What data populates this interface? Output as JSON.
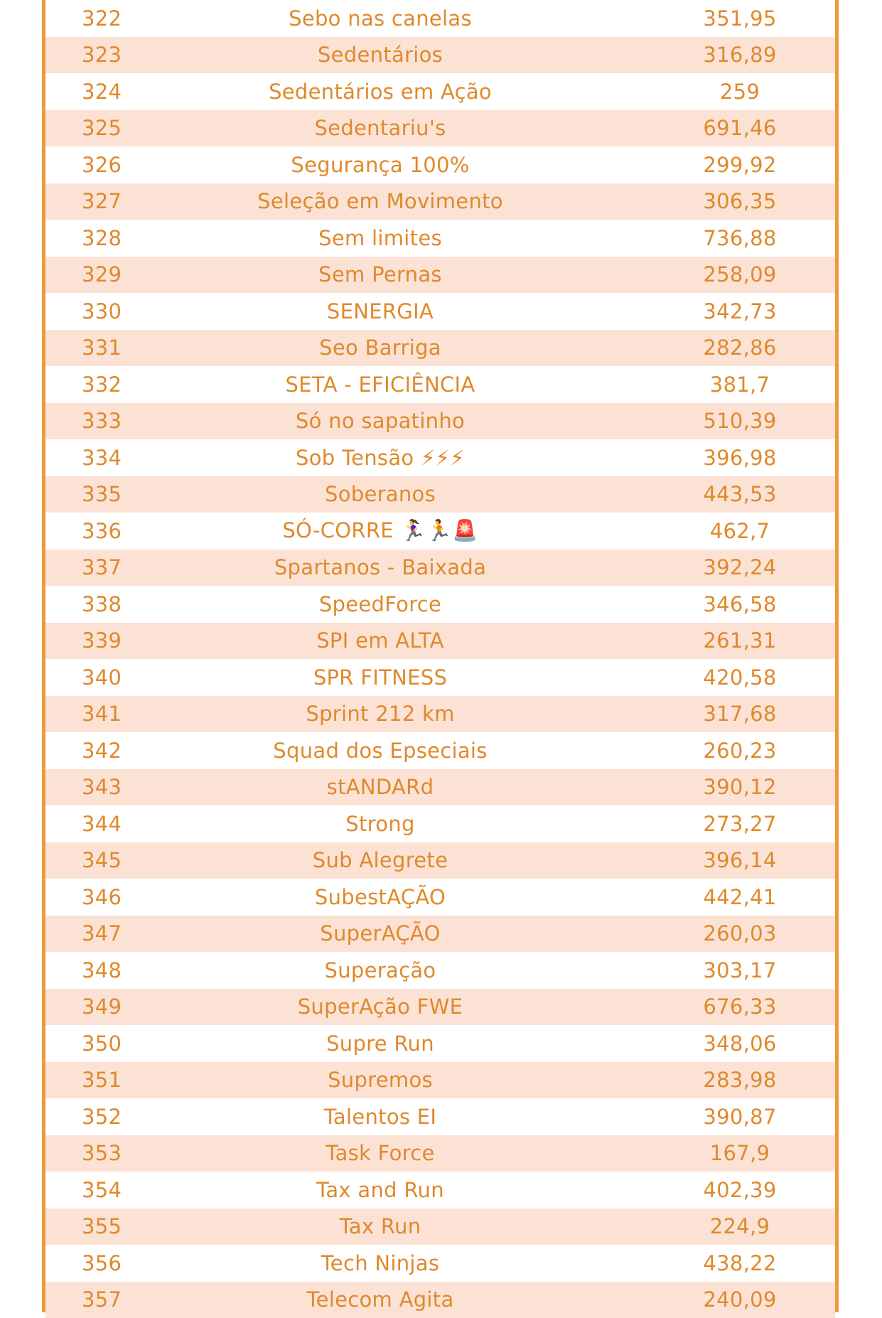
{
  "rows": [
    {
      "num": "322",
      "name": "Sebo nas canelas",
      "value": "351,95"
    },
    {
      "num": "323",
      "name": "Sedentários",
      "value": "316,89"
    },
    {
      "num": "324",
      "name": "Sedentários em Ação",
      "value": "259"
    },
    {
      "num": "325",
      "name": "Sedentariu's",
      "value": "691,46"
    },
    {
      "num": "326",
      "name": "Segurança 100%",
      "value": "299,92"
    },
    {
      "num": "327",
      "name": "Seleção em Movimento",
      "value": "306,35"
    },
    {
      "num": "328",
      "name": "Sem limites",
      "value": "736,88"
    },
    {
      "num": "329",
      "name": "Sem Pernas",
      "value": "258,09"
    },
    {
      "num": "330",
      "name": "SENERGIA",
      "value": "342,73"
    },
    {
      "num": "331",
      "name": "Seo Barriga",
      "value": "282,86"
    },
    {
      "num": "332",
      "name": "SETA - EFICIÊNCIA",
      "value": "381,7"
    },
    {
      "num": "333",
      "name": "Só no sapatinho",
      "value": "510,39"
    },
    {
      "num": "334",
      "name": "Sob Tensão ⚡⚡⚡",
      "value": "396,98"
    },
    {
      "num": "335",
      "name": "Soberanos",
      "value": "443,53"
    },
    {
      "num": "336",
      "name": "SÓ-CORRE 🏃‍♀️🏃🚨",
      "value": "462,7"
    },
    {
      "num": "337",
      "name": "Spartanos - Baixada",
      "value": "392,24"
    },
    {
      "num": "338",
      "name": "SpeedForce",
      "value": "346,58"
    },
    {
      "num": "339",
      "name": "SPI em ALTA",
      "value": "261,31"
    },
    {
      "num": "340",
      "name": "SPR FITNESS",
      "value": "420,58"
    },
    {
      "num": "341",
      "name": "Sprint 212 km",
      "value": "317,68"
    },
    {
      "num": "342",
      "name": "Squad dos Epseciais",
      "value": "260,23"
    },
    {
      "num": "343",
      "name": "stANDARd",
      "value": "390,12"
    },
    {
      "num": "344",
      "name": "Strong",
      "value": "273,27"
    },
    {
      "num": "345",
      "name": "Sub Alegrete",
      "value": "396,14"
    },
    {
      "num": "346",
      "name": "SubestAÇÃO",
      "value": "442,41"
    },
    {
      "num": "347",
      "name": "SuperAÇÃO",
      "value": "260,03"
    },
    {
      "num": "348",
      "name": "Superação",
      "value": "303,17"
    },
    {
      "num": "349",
      "name": "SuperAção FWE",
      "value": "676,33"
    },
    {
      "num": "350",
      "name": "Supre Run",
      "value": "348,06"
    },
    {
      "num": "351",
      "name": "Supremos",
      "value": "283,98"
    },
    {
      "num": "352",
      "name": "Talentos EI",
      "value": "390,87"
    },
    {
      "num": "353",
      "name": "Task Force",
      "value": "167,9"
    },
    {
      "num": "354",
      "name": "Tax and Run",
      "value": "402,39"
    },
    {
      "num": "355",
      "name": "Tax Run",
      "value": "224,9"
    },
    {
      "num": "356",
      "name": "Tech Ninjas",
      "value": "438,22"
    },
    {
      "num": "357",
      "name": "Telecom Agita",
      "value": "240,09"
    }
  ],
  "colors": {
    "text": "#e0892b",
    "border": "#ec9a3f",
    "shade": "#fbe2d5"
  }
}
